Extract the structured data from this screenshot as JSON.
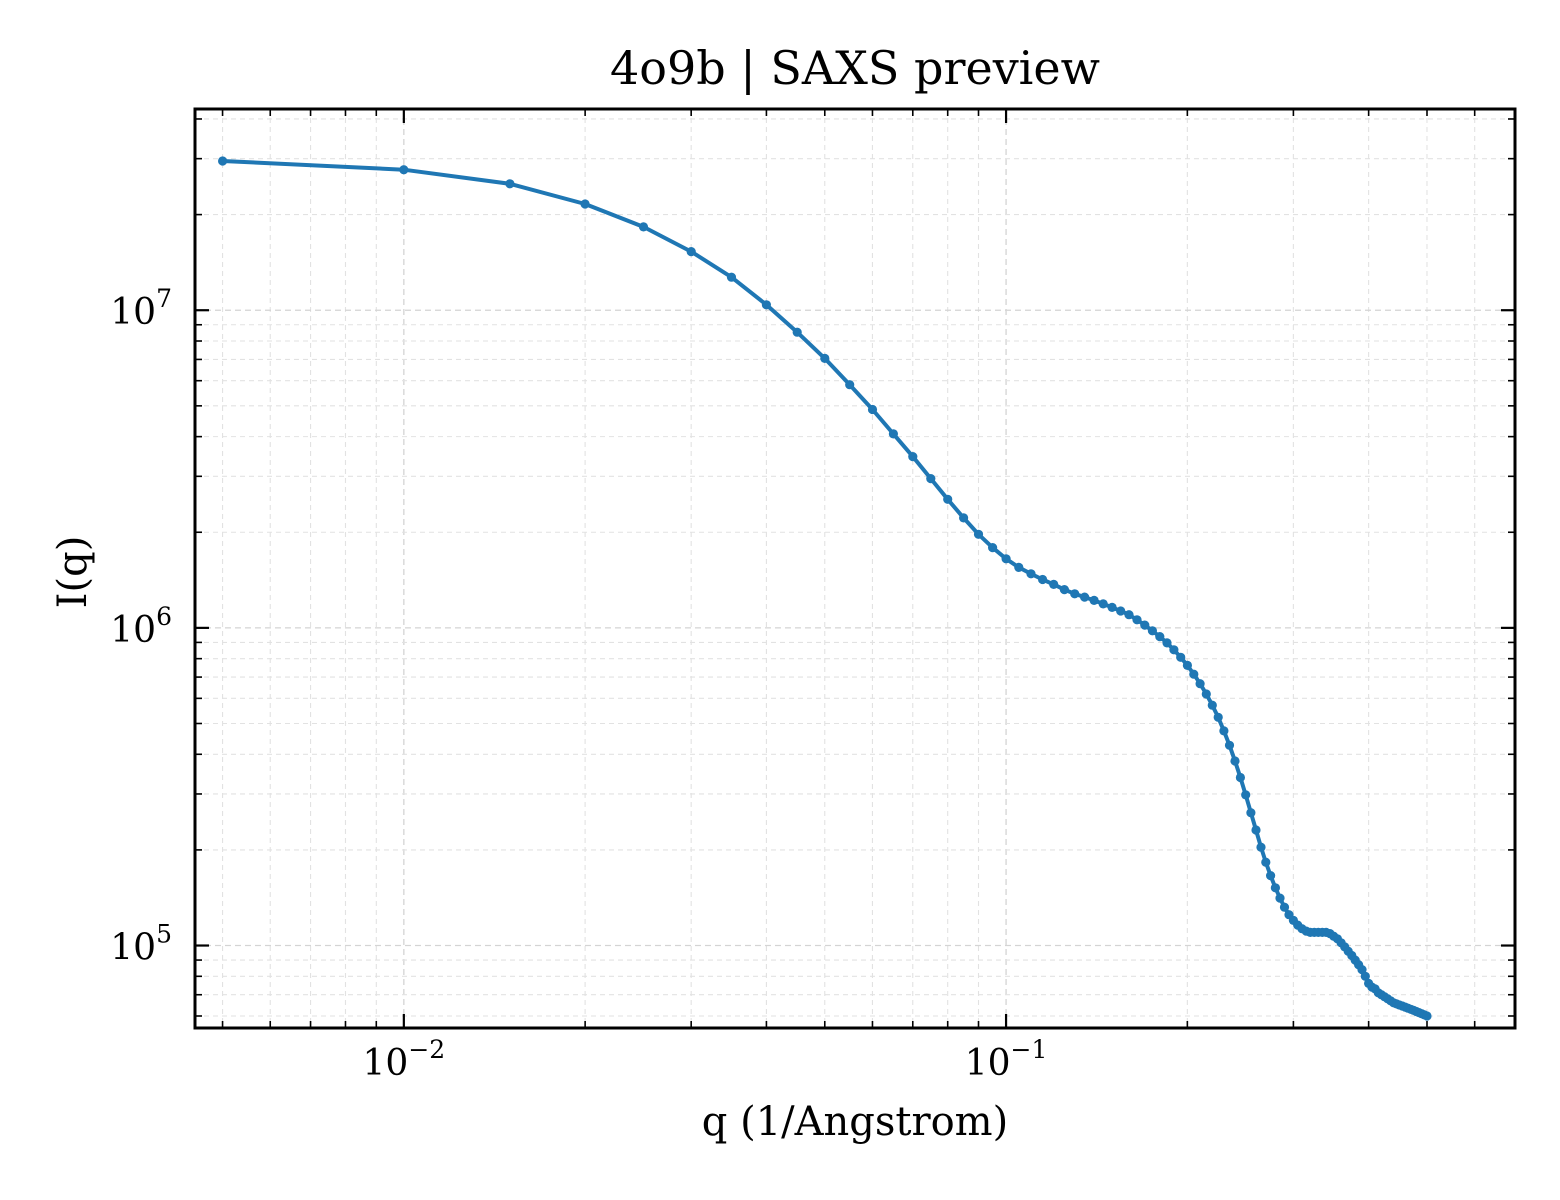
{
  "chart_data": {
    "type": "line",
    "title": "4o9b | SAXS preview",
    "xlabel": "q (1/Angstrom)",
    "ylabel": "I(q)",
    "xscale": "log",
    "yscale": "log",
    "xlim": [
      0.0045,
      0.7
    ],
    "ylim": [
      55000,
      43000000
    ],
    "grid": "on",
    "legend": "none",
    "line_color": "#1f77b4",
    "x_ticks": [
      {
        "value": 0.01,
        "base": "10",
        "exp": "−2"
      },
      {
        "value": 0.1,
        "base": "10",
        "exp": "−1"
      }
    ],
    "y_ticks": [
      {
        "value": 100000,
        "base": "10",
        "exp": "5"
      },
      {
        "value": 1000000,
        "base": "10",
        "exp": "6"
      },
      {
        "value": 10000000,
        "base": "10",
        "exp": "7"
      }
    ],
    "series": [
      {
        "x": [
          0.005,
          0.01,
          0.015,
          0.02,
          0.025,
          0.03,
          0.035,
          0.04,
          0.045,
          0.05,
          0.055,
          0.06,
          0.065,
          0.07,
          0.075,
          0.08,
          0.085,
          0.09,
          0.095,
          0.1,
          0.105,
          0.11,
          0.115,
          0.12,
          0.125,
          0.13,
          0.135,
          0.14,
          0.145,
          0.15,
          0.155,
          0.16,
          0.165,
          0.17,
          0.175,
          0.18,
          0.185,
          0.19,
          0.195,
          0.2,
          0.205,
          0.21,
          0.215,
          0.22,
          0.225,
          0.23,
          0.235,
          0.24,
          0.245,
          0.25,
          0.255,
          0.26,
          0.265,
          0.27,
          0.275,
          0.28,
          0.285,
          0.29,
          0.295,
          0.3,
          0.305,
          0.31,
          0.315,
          0.32,
          0.325,
          0.33,
          0.335,
          0.34,
          0.345,
          0.35,
          0.355,
          0.36,
          0.365,
          0.37,
          0.375,
          0.38,
          0.385,
          0.39,
          0.395,
          0.4,
          0.405,
          0.41,
          0.415,
          0.42,
          0.425,
          0.43,
          0.435,
          0.44,
          0.445,
          0.45,
          0.455,
          0.46,
          0.465,
          0.47,
          0.475,
          0.48,
          0.485,
          0.49,
          0.495,
          0.5
        ],
        "y": [
          29500000,
          27700000,
          25000000,
          21600000,
          18300000,
          15300000,
          12700000,
          10400000,
          8530000,
          7050000,
          5830000,
          4870000,
          4080000,
          3460000,
          2950000,
          2540000,
          2220000,
          1970000,
          1790000,
          1650000,
          1550000,
          1480000,
          1420000,
          1370000,
          1320000,
          1280000,
          1250000,
          1220000,
          1190000,
          1160000,
          1130000,
          1100000,
          1060000,
          1020000,
          979000,
          939000,
          897000,
          853000,
          808000,
          762000,
          715000,
          667000,
          619000,
          571000,
          523000,
          474000,
          427000,
          381000,
          338000,
          298000,
          262000,
          231000,
          204000,
          183000,
          166000,
          152000,
          141000,
          132000,
          125000,
          120000,
          116000,
          113000,
          111000,
          110000,
          110000,
          110000,
          110000,
          110000,
          109000,
          107000,
          105000,
          102000,
          99000,
          96000,
          93000,
          90000,
          87000,
          84000,
          80000,
          76000,
          74000,
          73000,
          71000,
          70000,
          69000,
          68000,
          67000,
          66000,
          65500,
          65000,
          64500,
          64000,
          63500,
          63000,
          62500,
          62000,
          61500,
          61000,
          60500,
          60000
        ]
      }
    ]
  }
}
